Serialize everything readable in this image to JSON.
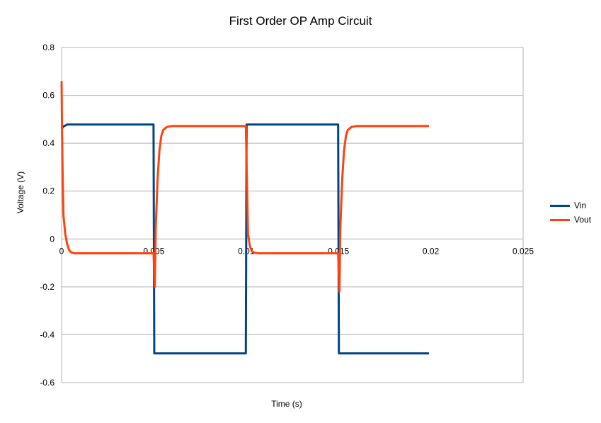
{
  "chart_data": {
    "type": "line",
    "title": "First Order OP Amp Circuit",
    "xlabel": "Time (s)",
    "ylabel": "Voltage (V)",
    "xlim": [
      0,
      0.025
    ],
    "ylim": [
      -0.6,
      0.8
    ],
    "xticks": [
      0,
      0.005,
      0.01,
      0.015,
      0.02,
      0.025
    ],
    "xtick_labels": [
      "0",
      "0.005",
      "0.01",
      "0.015",
      "0.02",
      "0.025"
    ],
    "yticks": [
      -0.6,
      -0.4,
      -0.2,
      0,
      0.2,
      0.4,
      0.6,
      0.8
    ],
    "ytick_labels": [
      "-0.6",
      "-0.4",
      "-0.2",
      "0",
      "0.2",
      "0.4",
      "0.6",
      "0.8"
    ],
    "grid": "horizontal",
    "legend_position": "right",
    "series": [
      {
        "name": "Vin",
        "color": "#004586",
        "x": [
          0,
          0.0001,
          0.0003,
          0.001,
          0.002,
          0.003,
          0.004,
          0.0049,
          0.00498,
          0.00502,
          0.0051,
          0.006,
          0.007,
          0.008,
          0.009,
          0.0099,
          0.00998,
          0.01002,
          0.0101,
          0.011,
          0.012,
          0.013,
          0.014,
          0.0149,
          0.01498,
          0.01502,
          0.0151,
          0.016,
          0.017,
          0.018,
          0.019,
          0.0199
        ],
        "y": [
          0.46,
          0.47,
          0.478,
          0.478,
          0.478,
          0.478,
          0.478,
          0.478,
          0.478,
          -0.478,
          -0.478,
          -0.478,
          -0.478,
          -0.478,
          -0.478,
          -0.478,
          -0.478,
          0.478,
          0.478,
          0.478,
          0.478,
          0.478,
          0.478,
          0.478,
          0.478,
          -0.478,
          -0.478,
          -0.478,
          -0.478,
          -0.478,
          -0.478,
          -0.478
        ]
      },
      {
        "name": "Vout",
        "color": "#ff420e",
        "x": [
          0,
          2e-05,
          5e-05,
          0.0001,
          0.0002,
          0.0003,
          0.0004,
          0.0005,
          0.0007,
          0.001,
          0.002,
          0.003,
          0.004,
          0.00498,
          0.00505,
          0.0051,
          0.0052,
          0.0053,
          0.0054,
          0.0055,
          0.0057,
          0.006,
          0.007,
          0.008,
          0.009,
          0.00998,
          0.01005,
          0.0101,
          0.0102,
          0.0103,
          0.0104,
          0.0105,
          0.0107,
          0.011,
          0.012,
          0.013,
          0.014,
          0.01498,
          0.01505,
          0.0151,
          0.0152,
          0.0153,
          0.0154,
          0.0155,
          0.0157,
          0.016,
          0.017,
          0.018,
          0.019,
          0.0199
        ],
        "y": [
          0.66,
          0.48,
          0.3,
          0.1,
          0.02,
          -0.02,
          -0.045,
          -0.055,
          -0.06,
          -0.06,
          -0.06,
          -0.06,
          -0.06,
          -0.06,
          -0.2,
          0.05,
          0.25,
          0.37,
          0.43,
          0.455,
          0.468,
          0.472,
          0.472,
          0.472,
          0.472,
          0.472,
          0.2,
          0.02,
          -0.03,
          -0.05,
          -0.056,
          -0.058,
          -0.06,
          -0.06,
          -0.06,
          -0.06,
          -0.06,
          -0.06,
          -0.22,
          0.05,
          0.25,
          0.37,
          0.43,
          0.455,
          0.468,
          0.472,
          0.472,
          0.472,
          0.472,
          0.472
        ]
      }
    ]
  }
}
